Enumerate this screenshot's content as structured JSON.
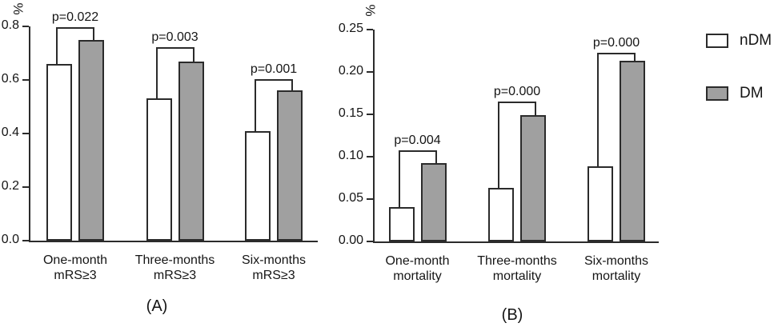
{
  "legend": {
    "items": [
      {
        "label": "nDM",
        "fill": "#ffffff"
      },
      {
        "label": "DM",
        "fill": "#a0a0a0"
      }
    ]
  },
  "colors": {
    "ndm_fill": "#ffffff",
    "dm_fill": "#a0a0a0",
    "bar_outline": "#2b2b2b",
    "axis_line": "#2b2b2b",
    "text": "#151515"
  },
  "chart_data": [
    {
      "id": "A",
      "type": "bar",
      "caption": "(A)",
      "ylabel": "%",
      "ylim": [
        0,
        0.8
      ],
      "grid": false,
      "legend_position": "outside-right",
      "yticks": [
        "0.8",
        "0.6",
        "0.4",
        "0.2",
        "0.0"
      ],
      "categories": [
        [
          "One-month",
          "mRS≥3"
        ],
        [
          "Three-months",
          "mRS≥3"
        ],
        [
          "Six-months",
          "mRS≥3"
        ]
      ],
      "series": [
        {
          "name": "nDM",
          "values": [
            0.66,
            0.53,
            0.41
          ]
        },
        {
          "name": "DM",
          "values": [
            0.75,
            0.67,
            0.56
          ]
        }
      ],
      "significance": [
        {
          "label": "p=0.022",
          "bracket_top": 0.797
        },
        {
          "label": "p=0.003",
          "bracket_top": 0.722
        },
        {
          "label": "p=0.001",
          "bracket_top": 0.603
        }
      ]
    },
    {
      "id": "B",
      "type": "bar",
      "caption": "(B)",
      "ylabel": "%",
      "ylim": [
        0,
        0.25
      ],
      "grid": false,
      "legend_position": "outside-right",
      "yticks": [
        "0.25",
        "0.20",
        "0.15",
        "0.10",
        "0.05",
        "0.00"
      ],
      "categories": [
        [
          "One-month",
          "mortality"
        ],
        [
          "Three-months",
          "mortality"
        ],
        [
          "Six-months",
          "mortality"
        ]
      ],
      "series": [
        {
          "name": "nDM",
          "values": [
            0.041,
            0.063,
            0.089
          ]
        },
        {
          "name": "DM",
          "values": [
            0.092,
            0.149,
            0.213
          ]
        }
      ],
      "significance": [
        {
          "label": "p=0.004",
          "bracket_top": 0.108
        },
        {
          "label": "p=0.000",
          "bracket_top": 0.165
        },
        {
          "label": "p=0.000",
          "bracket_top": 0.223
        }
      ]
    }
  ]
}
